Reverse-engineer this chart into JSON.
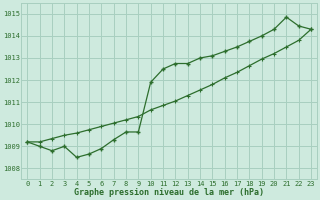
{
  "title": "Graphe pression niveau de la mer (hPa)",
  "bg_color": "#ceeade",
  "grid_color": "#a8cfc0",
  "line_color": "#2d6e2d",
  "xlim": [
    -0.5,
    23.5
  ],
  "ylim": [
    1007.5,
    1015.5
  ],
  "yticks": [
    1008,
    1009,
    1010,
    1011,
    1012,
    1013,
    1014,
    1015
  ],
  "xtick_labels": [
    "0",
    "1",
    "2",
    "3",
    "4",
    "5",
    "6",
    "7",
    "8",
    "9",
    "10",
    "11",
    "12",
    "13",
    "14",
    "15",
    "16",
    "17",
    "18",
    "19",
    "20",
    "21",
    "22",
    "23"
  ],
  "series1_x": [
    0,
    1,
    2,
    3,
    4,
    5,
    6,
    7,
    8,
    9,
    10,
    11,
    12,
    13,
    14,
    15,
    16,
    17,
    18,
    19,
    20,
    21,
    22,
    23
  ],
  "series1_y": [
    1009.2,
    1009.0,
    1008.8,
    1009.0,
    1008.5,
    1008.65,
    1008.9,
    1009.3,
    1009.65,
    1009.65,
    1011.9,
    1012.5,
    1012.75,
    1012.75,
    1013.0,
    1013.1,
    1013.3,
    1013.5,
    1013.75,
    1014.0,
    1014.3,
    1014.85,
    1014.45,
    1014.3
  ],
  "series2_x": [
    0,
    1,
    2,
    3,
    4,
    5,
    6,
    7,
    8,
    9,
    10,
    11,
    12,
    13,
    14,
    15,
    16,
    17,
    18,
    19,
    20,
    21,
    22,
    23
  ],
  "series2_y": [
    1009.2,
    1009.2,
    1009.35,
    1009.5,
    1009.6,
    1009.75,
    1009.9,
    1010.05,
    1010.2,
    1010.35,
    1010.65,
    1010.85,
    1011.05,
    1011.3,
    1011.55,
    1011.8,
    1012.1,
    1012.35,
    1012.65,
    1012.95,
    1013.2,
    1013.5,
    1013.8,
    1014.3
  ]
}
